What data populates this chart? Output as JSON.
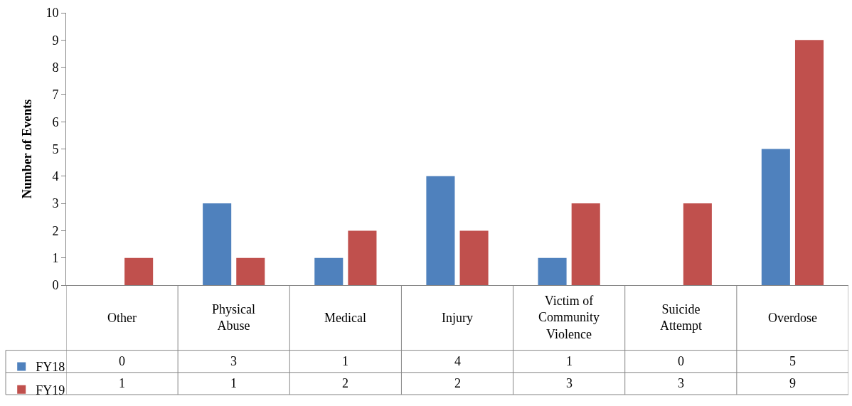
{
  "chart_data": {
    "type": "bar",
    "ylabel": "Number of Events",
    "categories": [
      "Other",
      "Physical Abuse",
      "Medical",
      "Injury",
      "Victim of Community Violence",
      "Suicide Attempt",
      "Overdose"
    ],
    "series": [
      {
        "name": "FY18",
        "color": "#4f81bd",
        "values": [
          0,
          3,
          1,
          4,
          1,
          0,
          5
        ]
      },
      {
        "name": "FY19",
        "color": "#c0504d",
        "values": [
          1,
          1,
          2,
          2,
          3,
          3,
          9
        ]
      }
    ],
    "ylim": [
      0,
      10
    ],
    "yticks": [
      0,
      1,
      2,
      3,
      4,
      5,
      6,
      7,
      8,
      9,
      10
    ],
    "legend": "bottom left",
    "data_labels": true
  }
}
